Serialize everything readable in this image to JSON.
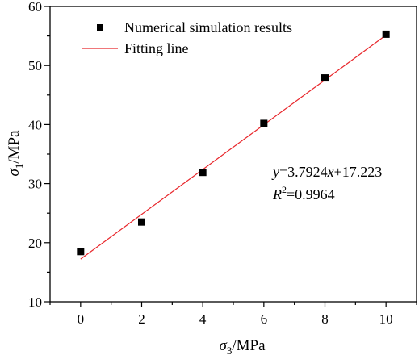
{
  "chart_data": {
    "type": "scatter",
    "title": "",
    "xlabel": {
      "symbol": "σ",
      "sub": "3",
      "unit": "/MPa"
    },
    "ylabel": {
      "symbol": "σ",
      "sub": "1",
      "unit": "/MPa"
    },
    "xlim": [
      -1,
      11
    ],
    "ylim": [
      10,
      60
    ],
    "xticks": [
      0,
      2,
      4,
      6,
      8,
      10
    ],
    "yticks": [
      10,
      20,
      30,
      40,
      50,
      60
    ],
    "grid": false,
    "legend_position": "top-left",
    "series": [
      {
        "name": "Numerical simulation results",
        "kind": "scatter",
        "marker": "square",
        "color": "#000000",
        "x": [
          0,
          2,
          4,
          6,
          8,
          10
        ],
        "y": [
          18.5,
          23.5,
          31.9,
          40.2,
          47.9,
          55.3
        ]
      },
      {
        "name": "Fitting line",
        "kind": "line",
        "color": "#e8262b",
        "slope": 3.7924,
        "intercept": 17.223,
        "x_range": [
          0,
          10
        ]
      }
    ],
    "annotations": {
      "equation": {
        "y": "y",
        "eq": "=3.7924",
        "x": "x",
        "rest": "+17.223"
      },
      "r2": {
        "R": "R",
        "sup": "2",
        "rest": "=0.9964"
      }
    }
  }
}
